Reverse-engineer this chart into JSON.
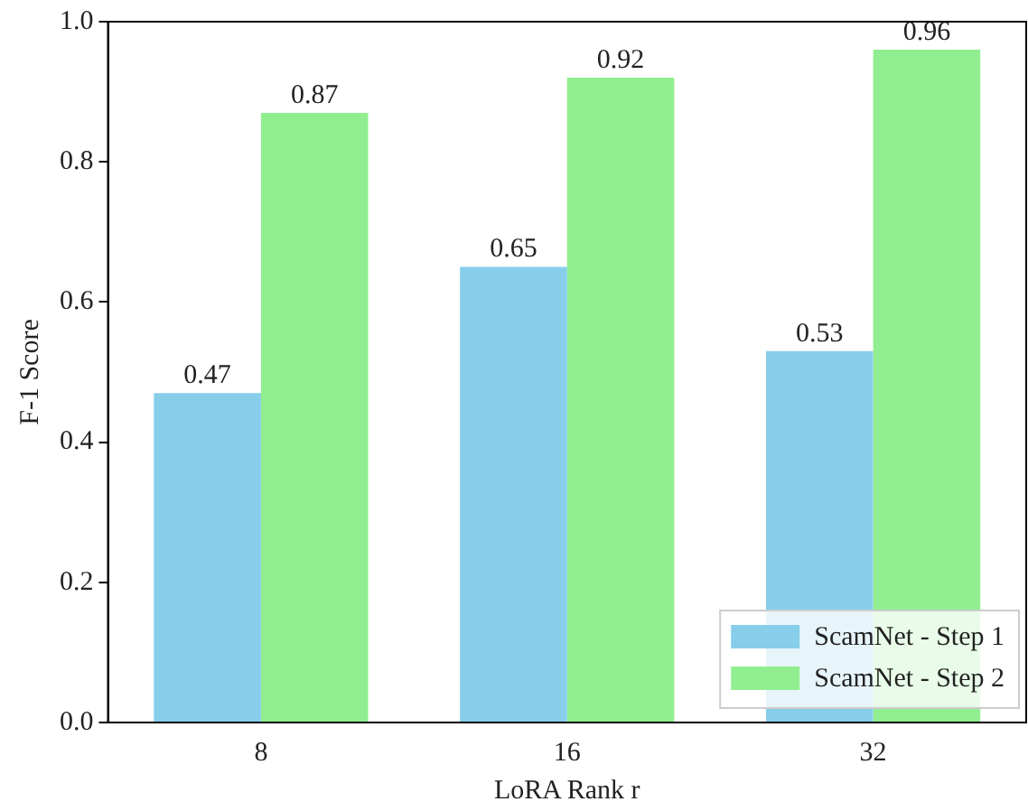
{
  "chart_data": {
    "type": "bar",
    "xlabel": "LoRA Rank r",
    "ylabel": "F-1 Score",
    "categories": [
      "8",
      "16",
      "32"
    ],
    "series": [
      {
        "name": "ScamNet - Step 1",
        "color": "#87ceeb",
        "values": [
          0.47,
          0.65,
          0.53
        ]
      },
      {
        "name": "ScamNet - Step 2",
        "color": "#90ee90",
        "values": [
          0.87,
          0.92,
          0.96
        ]
      }
    ],
    "ylim": [
      0,
      1.0
    ],
    "yticks": [
      {
        "value": 0,
        "label": "0.0"
      },
      {
        "value": 0.2,
        "label": "0.2"
      },
      {
        "value": 0.4,
        "label": "0.4"
      },
      {
        "value": 0.6,
        "label": "0.6"
      },
      {
        "value": 0.8,
        "label": "0.8"
      },
      {
        "value": 1.0,
        "label": "1.0"
      }
    ],
    "data_labels": true,
    "legend": "bottom right",
    "grid": false
  }
}
